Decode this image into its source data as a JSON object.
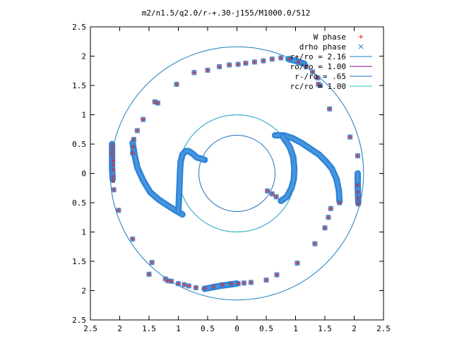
{
  "chart_data": {
    "type": "scatter",
    "title": "m2/n1.5/q2.0/r-+.30-j155/M1000.0/512",
    "xlabel": "",
    "ylabel": "",
    "xlim": [
      -2.5,
      2.5
    ],
    "ylim": [
      -2.5,
      2.5
    ],
    "x_ticks": [
      "2.5",
      "2",
      "1.5",
      "1",
      "0.5",
      "0",
      "0.5",
      "1",
      "1.5",
      "2",
      "2.5"
    ],
    "y_ticks": [
      "2.5",
      "2",
      "1.5",
      "1",
      "0.5",
      "0",
      "0.5",
      "1",
      "1.5",
      "2",
      "2.5"
    ],
    "grid": false,
    "legend_position": "top-right",
    "circles": [
      {
        "name": "r+/ro = 2.16",
        "radius": 2.16,
        "color": "#1a7fbf"
      },
      {
        "name": "ro/ro = 1.00",
        "radius": 1.0,
        "color": "#8b0a8b"
      },
      {
        "name": "r-/ro = .65",
        "radius": 0.65,
        "color": "#1f6fb8"
      },
      {
        "name": "rc/ro = 1.00",
        "radius": 1.0,
        "color": "#22c5cf"
      }
    ],
    "series": [
      {
        "name": "W phase",
        "marker": "plus",
        "color": "#e8242a"
      },
      {
        "name": "drho phase",
        "marker": "x",
        "color": "#2e86d6"
      }
    ],
    "points": [
      [
        -2.13,
        0.48
      ],
      [
        -2.13,
        0.42
      ],
      [
        -2.13,
        0.36
      ],
      [
        -2.13,
        0.3
      ],
      [
        -2.12,
        0.22
      ],
      [
        -2.12,
        0.15
      ],
      [
        -2.12,
        0.06
      ],
      [
        -2.12,
        -0.05
      ],
      [
        -2.12,
        -0.12
      ],
      [
        -2.1,
        -0.28
      ],
      [
        -2.02,
        -0.63
      ],
      [
        -1.78,
        -1.12
      ],
      [
        -1.78,
        0.35
      ],
      [
        -1.77,
        0.45
      ],
      [
        -1.76,
        0.58
      ],
      [
        -1.7,
        0.73
      ],
      [
        -1.6,
        0.92
      ],
      [
        -1.4,
        1.22
      ],
      [
        -1.35,
        1.2
      ],
      [
        -1.03,
        1.52
      ],
      [
        -0.73,
        1.72
      ],
      [
        -0.5,
        1.76
      ],
      [
        -0.3,
        1.82
      ],
      [
        -0.13,
        1.85
      ],
      [
        0.02,
        1.86
      ],
      [
        0.15,
        1.88
      ],
      [
        0.3,
        1.9
      ],
      [
        0.45,
        1.92
      ],
      [
        0.6,
        1.95
      ],
      [
        0.75,
        1.97
      ],
      [
        0.9,
        1.95
      ],
      [
        1.05,
        1.9
      ],
      [
        1.18,
        1.82
      ],
      [
        1.29,
        1.73
      ],
      [
        1.38,
        1.63
      ],
      [
        1.42,
        1.5
      ],
      [
        1.39,
        1.52
      ],
      [
        1.58,
        1.1
      ],
      [
        1.93,
        0.62
      ],
      [
        2.06,
        0.3
      ],
      [
        2.06,
        -0.2
      ],
      [
        2.06,
        -0.32
      ],
      [
        2.06,
        -0.42
      ],
      [
        2.07,
        -0.48
      ],
      [
        2.07,
        -0.52
      ],
      [
        1.75,
        -0.5
      ],
      [
        1.6,
        -0.6
      ],
      [
        1.56,
        -0.75
      ],
      [
        1.5,
        -0.93
      ],
      [
        1.33,
        -1.2
      ],
      [
        1.03,
        -1.53
      ],
      [
        0.68,
        -1.73
      ],
      [
        0.5,
        -1.82
      ],
      [
        0.24,
        -1.86
      ],
      [
        0.12,
        -1.87
      ],
      [
        0.02,
        -1.88
      ],
      [
        -0.1,
        -1.88
      ],
      [
        -0.25,
        -1.9
      ],
      [
        -0.4,
        -1.93
      ],
      [
        -0.55,
        -1.96
      ],
      [
        -0.7,
        -1.95
      ],
      [
        -0.82,
        -1.92
      ],
      [
        -0.9,
        -1.9
      ],
      [
        -1.0,
        -1.88
      ],
      [
        -1.12,
        -1.84
      ],
      [
        -1.22,
        -1.8
      ],
      [
        -1.18,
        -1.83
      ],
      [
        -1.5,
        -1.72
      ],
      [
        -1.45,
        -1.52
      ],
      [
        0.52,
        -0.3
      ],
      [
        0.6,
        -0.35
      ],
      [
        0.67,
        -0.4
      ]
    ],
    "bands": [
      [
        [
          -0.93,
          -0.7
        ],
        [
          -1.05,
          -0.63
        ],
        [
          -1.18,
          -0.55
        ],
        [
          -1.33,
          -0.45
        ],
        [
          -1.48,
          -0.32
        ],
        [
          -1.6,
          -0.12
        ],
        [
          -1.7,
          0.1
        ],
        [
          -1.75,
          0.33
        ],
        [
          -1.78,
          0.52
        ]
      ],
      [
        [
          -1.0,
          -0.65
        ],
        [
          -0.99,
          -0.45
        ],
        [
          -0.98,
          -0.2
        ],
        [
          -0.97,
          0.05
        ],
        [
          -0.96,
          0.2
        ],
        [
          -0.93,
          0.32
        ],
        [
          -0.88,
          0.38
        ],
        [
          -0.82,
          0.38
        ],
        [
          -0.75,
          0.33
        ],
        [
          -0.68,
          0.27
        ],
        [
          -0.6,
          0.25
        ],
        [
          -0.55,
          0.23
        ]
      ],
      [
        [
          -2.13,
          0.5
        ],
        [
          -2.13,
          0.1
        ],
        [
          -2.12,
          -0.1
        ]
      ],
      [
        [
          0.65,
          0.65
        ],
        [
          0.8,
          0.65
        ],
        [
          0.95,
          0.6
        ],
        [
          1.1,
          0.52
        ],
        [
          1.25,
          0.42
        ],
        [
          1.4,
          0.32
        ],
        [
          1.52,
          0.2
        ],
        [
          1.62,
          0.08
        ],
        [
          1.7,
          -0.1
        ],
        [
          1.74,
          -0.3
        ],
        [
          1.75,
          -0.48
        ]
      ],
      [
        [
          0.78,
          0.63
        ],
        [
          0.9,
          0.45
        ],
        [
          0.96,
          0.28
        ],
        [
          0.98,
          0.08
        ],
        [
          0.97,
          -0.1
        ],
        [
          0.93,
          -0.25
        ],
        [
          0.85,
          -0.4
        ],
        [
          0.75,
          -0.47
        ]
      ],
      [
        [
          2.06,
          0.0
        ],
        [
          2.06,
          -0.2
        ],
        [
          2.07,
          -0.5
        ]
      ],
      [
        [
          0.88,
          1.95
        ],
        [
          1.0,
          1.92
        ],
        [
          1.15,
          1.87
        ]
      ],
      [
        [
          -0.55,
          -1.97
        ],
        [
          -0.3,
          -1.92
        ],
        [
          0.0,
          -1.88
        ]
      ]
    ]
  }
}
